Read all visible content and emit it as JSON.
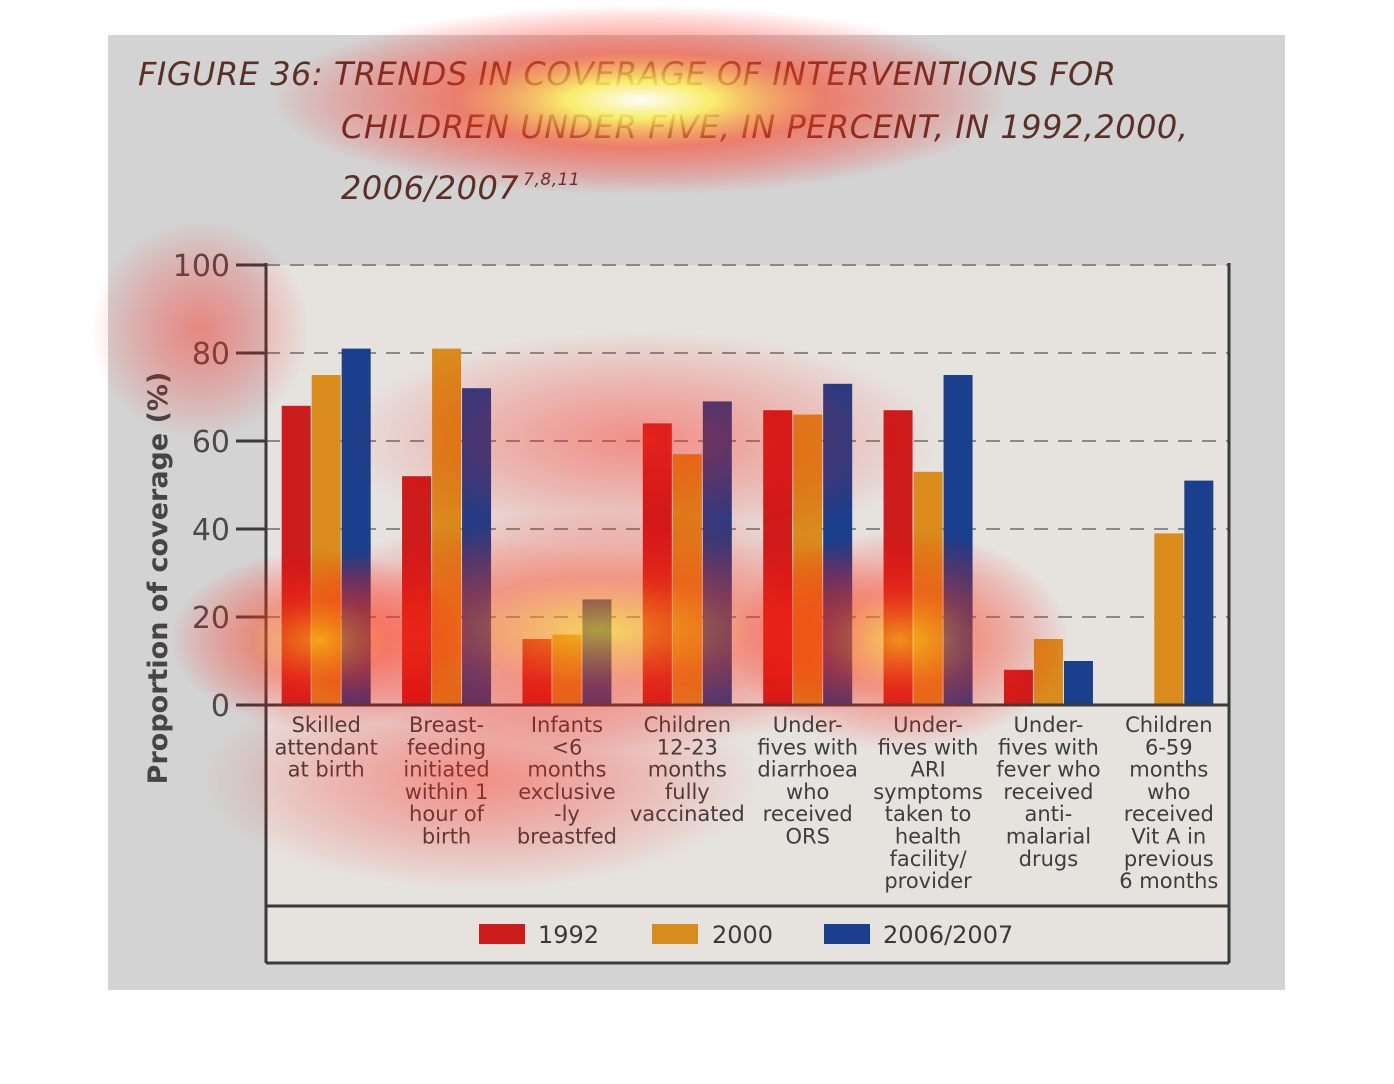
{
  "figure_title": {
    "line1": "FIGURE 36: TRENDS IN COVERAGE OF INTERVENTIONS FOR",
    "line2": "CHILDREN UNDER FIVE, IN PERCENT, IN 1992,2000,",
    "line3": "2006/2007",
    "refs": "7,8,11"
  },
  "colors": {
    "1992": "#cc1c1c",
    "2000": "#d98b1c",
    "2006/2007": "#1a3f8c"
  },
  "chart_data": {
    "type": "bar",
    "ylabel": "Proportion of coverage (%)",
    "ylim": [
      0,
      100
    ],
    "yticks": [
      0,
      20,
      40,
      60,
      80,
      100
    ],
    "grid": "horizontal dashed",
    "legend_position": "bottom",
    "categories": [
      [
        "Skilled",
        "attendant",
        "at birth"
      ],
      [
        "Breast-",
        "feeding",
        "initiated",
        "within 1",
        "hour of",
        "birth"
      ],
      [
        "Infants",
        "<6",
        "months",
        "exclusive",
        "-ly",
        "breastfed"
      ],
      [
        "Children",
        "12-23",
        "months",
        "fully",
        "vaccinated"
      ],
      [
        "Under-",
        "fives with",
        "diarrhoea",
        "who",
        "received",
        "ORS"
      ],
      [
        "Under-",
        "fives with",
        "ARI",
        "symptoms",
        "taken to",
        "health",
        "facility/",
        "provider"
      ],
      [
        "Under-",
        "fives with",
        "fever who",
        "received",
        "anti-",
        "malarial",
        "drugs"
      ],
      [
        "Children",
        "6-59",
        "months",
        "who",
        "received",
        "Vit A in",
        "previous",
        "6 months"
      ]
    ],
    "series": [
      {
        "name": "1992",
        "values": [
          68,
          52,
          15,
          64,
          67,
          67,
          8,
          null
        ]
      },
      {
        "name": "2000",
        "values": [
          75,
          81,
          16,
          57,
          66,
          53,
          15,
          39
        ]
      },
      {
        "name": "2006/2007",
        "values": [
          81,
          72,
          24,
          69,
          73,
          75,
          10,
          51
        ]
      }
    ]
  }
}
